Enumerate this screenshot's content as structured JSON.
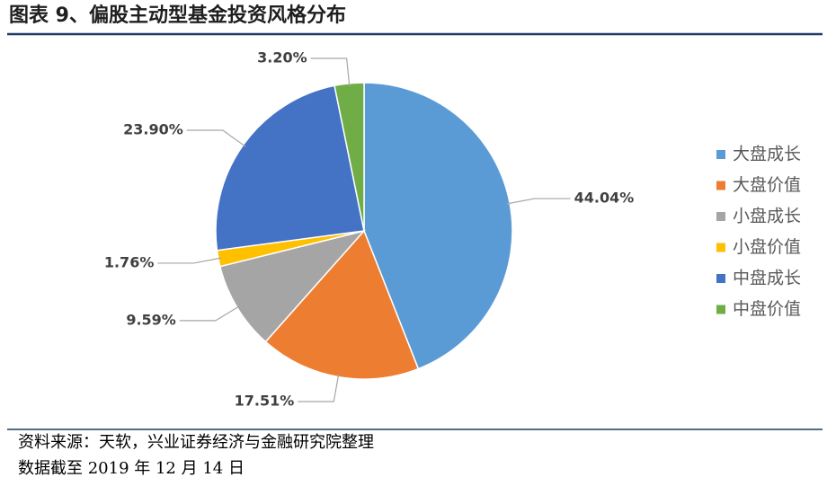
{
  "chart_data": {
    "type": "pie",
    "title": "图表 9、偏股主动型基金投资风格分布",
    "categories": [
      "大盘成长",
      "大盘价值",
      "小盘成长",
      "小盘价值",
      "中盘成长",
      "中盘价值"
    ],
    "values": [
      44.04,
      17.51,
      9.59,
      1.76,
      23.9,
      3.2
    ],
    "value_labels": [
      "44.04%",
      "17.51%",
      "9.59%",
      "1.76%",
      "23.90%",
      "3.20%"
    ],
    "colors": [
      "#5b9bd5",
      "#ed7d31",
      "#a5a5a5",
      "#ffc000",
      "#4472c4",
      "#70ad47"
    ],
    "legend": "right"
  },
  "notes": [
    "资料来源：天软，兴业证券经济与金融研究院整理",
    "数据截至 2019 年 12 月 14 日"
  ]
}
